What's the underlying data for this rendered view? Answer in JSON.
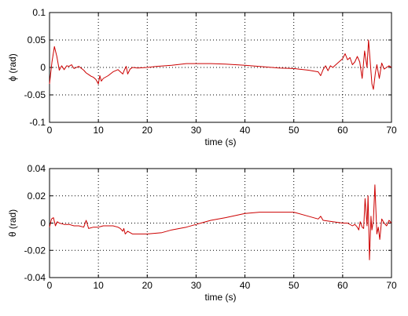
{
  "chart_data": [
    {
      "type": "line",
      "xlabel": "time (s)",
      "ylabel": "ϕ (rad)",
      "xlim": [
        0,
        70
      ],
      "ylim": [
        -0.1,
        0.1
      ],
      "xticks": [
        "0",
        "10",
        "20",
        "30",
        "40",
        "50",
        "60",
        "70"
      ],
      "yticks": [
        "0.1",
        "0.05",
        "0",
        "-0.05",
        "-0.1"
      ],
      "grid": true,
      "series": [
        {
          "color": "#cc0000",
          "x": [
            0,
            0.5,
            1.0,
            1.5,
            2.0,
            2.5,
            3.0,
            3.5,
            4.0,
            4.5,
            5.0,
            6.0,
            7.0,
            7.5,
            8.0,
            8.5,
            9.0,
            9.5,
            10.0,
            10.3,
            10.6,
            11.0,
            12.0,
            13.0,
            14.0,
            15.0,
            15.3,
            15.7,
            16.0,
            16.5,
            17.0,
            18.0,
            20.0,
            22.0,
            25.0,
            28.0,
            30.0,
            33.0,
            36.0,
            40.0,
            44.0,
            47.0,
            50.0,
            53.0,
            55.0,
            55.5,
            56.0,
            56.5,
            57.0,
            57.5,
            58.0,
            59.0,
            60.0,
            60.5,
            61.0,
            61.5,
            62.0,
            62.5,
            63.0,
            63.5,
            64.0,
            64.5,
            65.0,
            65.3,
            65.6,
            66.0,
            66.3,
            66.7,
            67.0,
            67.5,
            68.0,
            68.5,
            69.0,
            69.5,
            70.0
          ],
          "values": [
            -0.03,
            0.01,
            0.038,
            0.02,
            -0.005,
            0.003,
            -0.004,
            0.003,
            0.002,
            0.005,
            -0.002,
            0.002,
            -0.005,
            -0.01,
            -0.013,
            -0.016,
            -0.018,
            -0.022,
            -0.03,
            -0.015,
            -0.025,
            -0.02,
            -0.015,
            -0.008,
            -0.004,
            -0.012,
            -0.005,
            0.002,
            -0.012,
            -0.003,
            0.0,
            -0.001,
            0.0,
            0.002,
            0.004,
            0.007,
            0.007,
            0.007,
            0.006,
            0.004,
            0.001,
            -0.001,
            -0.002,
            -0.005,
            -0.008,
            -0.015,
            -0.004,
            0.003,
            -0.006,
            0.003,
            0.0,
            0.008,
            0.016,
            0.025,
            0.014,
            0.018,
            0.005,
            0.01,
            0.02,
            0.01,
            -0.02,
            0.03,
            0.0,
            0.05,
            0.015,
            -0.03,
            -0.04,
            -0.01,
            0.005,
            -0.02,
            0.008,
            -0.003,
            0.0,
            0.003,
            0.0
          ]
        }
      ]
    },
    {
      "type": "line",
      "xlabel": "time (s)",
      "ylabel": "θ (rad)",
      "xlim": [
        0,
        70
      ],
      "ylim": [
        -0.04,
        0.04
      ],
      "xticks": [
        "0",
        "10",
        "20",
        "30",
        "40",
        "50",
        "60",
        "70"
      ],
      "yticks": [
        "0.04",
        "0.02",
        "0",
        "-0.02",
        "-0.04"
      ],
      "grid": true,
      "series": [
        {
          "color": "#cc0000",
          "x": [
            0,
            0.4,
            0.8,
            1.2,
            1.6,
            2.0,
            3.0,
            4.0,
            5.0,
            6.0,
            7.0,
            7.5,
            8.0,
            9.0,
            10.0,
            11.0,
            12.0,
            13.0,
            14.0,
            14.5,
            15.0,
            15.2,
            15.5,
            16.0,
            17.0,
            20.0,
            23.0,
            25.0,
            28.0,
            30.0,
            33.0,
            36.0,
            40.0,
            43.0,
            47.0,
            50.0,
            53.0,
            55.0,
            55.5,
            56.0,
            58.0,
            60.0,
            61.0,
            62.0,
            62.5,
            63.0,
            63.3,
            63.6,
            64.0,
            64.3,
            64.6,
            65.0,
            65.2,
            65.5,
            65.8,
            66.0,
            66.3,
            66.6,
            67.0,
            67.3,
            67.6,
            68.0,
            68.5,
            69.0,
            69.5,
            70.0
          ],
          "values": [
            -0.003,
            0.003,
            0.004,
            -0.002,
            0.001,
            0.0,
            -0.001,
            -0.001,
            -0.002,
            -0.002,
            -0.003,
            0.002,
            -0.004,
            -0.003,
            -0.003,
            -0.002,
            -0.002,
            -0.002,
            -0.003,
            -0.004,
            -0.006,
            -0.004,
            -0.008,
            -0.006,
            -0.008,
            -0.008,
            -0.007,
            -0.005,
            -0.003,
            -0.001,
            0.002,
            0.004,
            0.007,
            0.008,
            0.008,
            0.008,
            0.005,
            0.003,
            0.005,
            0.002,
            0.001,
            0.0,
            0.0,
            -0.002,
            -0.001,
            -0.003,
            -0.005,
            0.001,
            -0.003,
            -0.004,
            0.018,
            -0.002,
            0.02,
            -0.027,
            0.005,
            -0.005,
            0.002,
            0.028,
            -0.008,
            -0.003,
            -0.012,
            0.003,
            0.0,
            -0.002,
            0.002,
            0.0
          ]
        }
      ]
    }
  ]
}
